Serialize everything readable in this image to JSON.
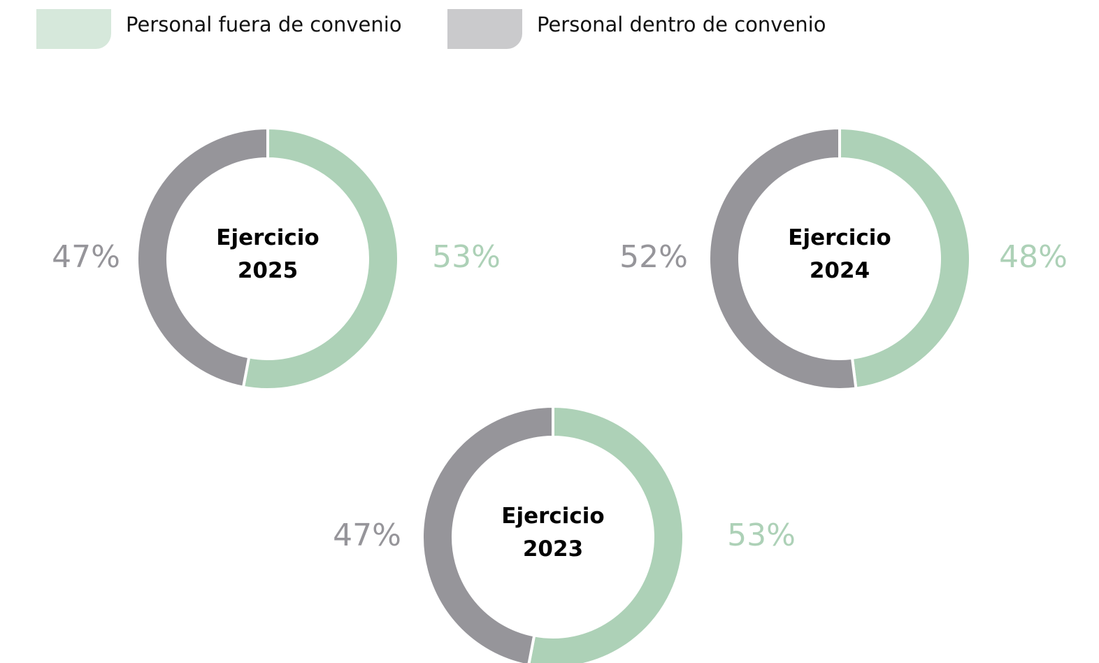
{
  "series": [
    {
      "name": "Personal fuera de convenio",
      "color": "#add1b7"
    },
    {
      "name": "Personal dentro de convenio",
      "color": "#96959a"
    }
  ],
  "chart_data": [
    {
      "type": "pie",
      "title": "Ejercicio 2025",
      "values": [
        53,
        47
      ],
      "value_labels": [
        "53%",
        "47%"
      ]
    },
    {
      "type": "pie",
      "title": "Ejercicio 2024",
      "values": [
        48,
        52
      ],
      "value_labels": [
        "48%",
        "52%"
      ]
    },
    {
      "type": "pie",
      "title": "Ejercicio 2023",
      "values": [
        53,
        47
      ],
      "value_labels": [
        "53%",
        "47%"
      ]
    }
  ]
}
